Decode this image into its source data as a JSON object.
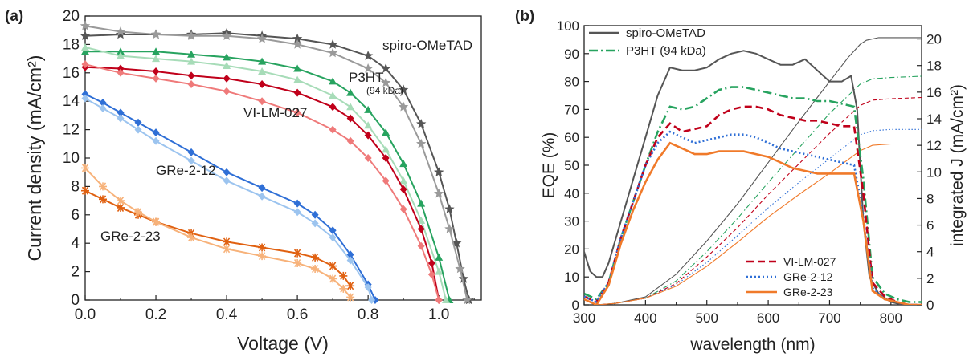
{
  "chart_data": [
    {
      "panel": "(a)",
      "type": "line",
      "xlabel": "Voltage (V)",
      "ylabel": "Current density (mA/cm²)",
      "xlim": [
        0,
        1.12
      ],
      "ylim": [
        0,
        20
      ],
      "xticks": [
        "0.0",
        "0.2",
        "0.4",
        "0.6",
        "0.8",
        "1.0"
      ],
      "xtick_values": [
        0,
        0.2,
        0.4,
        0.6,
        0.8,
        1.0
      ],
      "yticks": [
        "0",
        "2",
        "4",
        "6",
        "8",
        "10",
        "12",
        "14",
        "16",
        "18",
        "20"
      ],
      "ytick_values": [
        0,
        2,
        4,
        6,
        8,
        10,
        12,
        14,
        16,
        18,
        20
      ],
      "annotations": [
        {
          "text": "spiro-OMeTAD",
          "color": "#555555"
        },
        {
          "text": "P3HT",
          "color": "#27a35f"
        },
        {
          "text": "(94 kDa)",
          "color": "#27a35f"
        },
        {
          "text": "VI-LM-027",
          "color": "#c0001a"
        },
        {
          "text": "GRe-2-12",
          "color": "#2f6fd6"
        },
        {
          "text": "GRe-2-23",
          "color": "#f07a2a"
        }
      ],
      "series": [
        {
          "key": "spiro_fwd",
          "color": "#555555",
          "marker": "star",
          "x": [
            0,
            0.1,
            0.2,
            0.3,
            0.4,
            0.5,
            0.6,
            0.7,
            0.8,
            0.85,
            0.9,
            0.95,
            1.0,
            1.03,
            1.05,
            1.07,
            1.085
          ],
          "y": [
            18.6,
            18.7,
            18.7,
            18.7,
            18.8,
            18.6,
            18.4,
            18.0,
            17.2,
            16.3,
            14.8,
            12.4,
            9.0,
            6.4,
            4.0,
            1.5,
            0
          ]
        },
        {
          "key": "spiro_rev",
          "color": "#9a9a9a",
          "marker": "star",
          "x": [
            0,
            0.1,
            0.2,
            0.3,
            0.4,
            0.5,
            0.6,
            0.7,
            0.8,
            0.85,
            0.9,
            0.95,
            1.0,
            1.03,
            1.06,
            1.08
          ],
          "y": [
            19.3,
            18.9,
            18.7,
            18.6,
            18.6,
            18.4,
            18.0,
            17.4,
            16.3,
            15.3,
            13.6,
            11.0,
            7.5,
            5.0,
            2.2,
            0
          ]
        },
        {
          "key": "p3ht_fwd",
          "color": "#27a35f",
          "marker": "triangle",
          "x": [
            0,
            0.1,
            0.2,
            0.3,
            0.4,
            0.5,
            0.6,
            0.7,
            0.75,
            0.8,
            0.85,
            0.9,
            0.95,
            1.0,
            1.03
          ],
          "y": [
            17.5,
            17.5,
            17.5,
            17.3,
            17.1,
            16.8,
            16.3,
            15.4,
            14.6,
            13.4,
            11.8,
            9.6,
            6.8,
            3.0,
            0
          ]
        },
        {
          "key": "p3ht_rev",
          "color": "#a7dcb8",
          "marker": "triangle",
          "x": [
            0,
            0.1,
            0.2,
            0.3,
            0.4,
            0.5,
            0.6,
            0.7,
            0.75,
            0.8,
            0.85,
            0.9,
            0.95,
            1.0,
            1.02
          ],
          "y": [
            17.8,
            17.2,
            17.0,
            16.8,
            16.5,
            16.1,
            15.5,
            14.4,
            13.6,
            12.3,
            10.6,
            8.4,
            5.6,
            2.0,
            0
          ]
        },
        {
          "key": "vilm_fwd",
          "color": "#c0001a",
          "marker": "diamond",
          "x": [
            0,
            0.1,
            0.2,
            0.3,
            0.4,
            0.5,
            0.6,
            0.7,
            0.75,
            0.8,
            0.85,
            0.9,
            0.95,
            0.98,
            1.0
          ],
          "y": [
            16.4,
            16.3,
            16.1,
            15.8,
            15.6,
            15.2,
            14.6,
            13.6,
            12.8,
            11.6,
            10.0,
            7.8,
            5.0,
            2.6,
            0
          ]
        },
        {
          "key": "vilm_rev",
          "color": "#ef7a7a",
          "marker": "diamond",
          "x": [
            0,
            0.1,
            0.2,
            0.3,
            0.4,
            0.5,
            0.6,
            0.7,
            0.75,
            0.8,
            0.85,
            0.9,
            0.95,
            0.98,
            1.0
          ],
          "y": [
            16.6,
            16.0,
            15.6,
            15.2,
            14.7,
            14.0,
            13.2,
            12.0,
            11.2,
            10.0,
            8.4,
            6.4,
            3.8,
            1.8,
            0
          ]
        },
        {
          "key": "gre12_fwd",
          "color": "#2f6fd6",
          "marker": "diamond",
          "x": [
            0,
            0.05,
            0.1,
            0.15,
            0.2,
            0.3,
            0.4,
            0.5,
            0.6,
            0.65,
            0.7,
            0.75,
            0.8,
            0.82
          ],
          "y": [
            14.5,
            13.9,
            13.2,
            12.5,
            11.8,
            10.4,
            9.0,
            7.9,
            6.8,
            6.0,
            4.9,
            3.2,
            1.1,
            0
          ]
        },
        {
          "key": "gre12_rev",
          "color": "#9cc4ef",
          "marker": "diamond",
          "x": [
            0,
            0.05,
            0.1,
            0.15,
            0.2,
            0.3,
            0.4,
            0.5,
            0.6,
            0.65,
            0.7,
            0.75,
            0.8,
            0.81
          ],
          "y": [
            14.2,
            13.5,
            12.8,
            12.0,
            11.2,
            9.8,
            8.4,
            7.3,
            6.2,
            5.4,
            4.4,
            2.8,
            0.9,
            0
          ]
        },
        {
          "key": "gre23_fwd",
          "color": "#e06010",
          "marker": "asterisk",
          "x": [
            0,
            0.05,
            0.1,
            0.15,
            0.2,
            0.3,
            0.4,
            0.5,
            0.6,
            0.65,
            0.7,
            0.73,
            0.75
          ],
          "y": [
            7.7,
            7.1,
            6.5,
            6.0,
            5.5,
            4.7,
            4.1,
            3.7,
            3.3,
            3.0,
            2.4,
            1.7,
            1.0
          ]
        },
        {
          "key": "gre23_rev",
          "color": "#f7b27a",
          "marker": "asterisk",
          "x": [
            0,
            0.05,
            0.1,
            0.15,
            0.2,
            0.3,
            0.4,
            0.5,
            0.6,
            0.65,
            0.7,
            0.73,
            0.75
          ],
          "y": [
            9.3,
            8.0,
            7.0,
            6.2,
            5.5,
            4.4,
            3.6,
            3.1,
            2.6,
            2.2,
            1.5,
            0.8,
            0.2
          ]
        }
      ]
    },
    {
      "panel": "(b)",
      "type": "line",
      "xlabel": "wavelength (nm)",
      "ylabel": "EQE (%)",
      "y2label": "integrated J (mA/cm²)",
      "xlim": [
        300,
        850
      ],
      "ylim": [
        0,
        100
      ],
      "y2lim": [
        0,
        21
      ],
      "xticks": [
        "300",
        "400",
        "500",
        "600",
        "700",
        "800"
      ],
      "xtick_values": [
        300,
        400,
        500,
        600,
        700,
        800
      ],
      "yticks": [
        "0",
        "10",
        "20",
        "30",
        "40",
        "50",
        "60",
        "70",
        "80",
        "90",
        "100"
      ],
      "ytick_values": [
        0,
        10,
        20,
        30,
        40,
        50,
        60,
        70,
        80,
        90,
        100
      ],
      "y2ticks": [
        "0",
        "2",
        "4",
        "6",
        "8",
        "10",
        "12",
        "14",
        "16",
        "18",
        "20"
      ],
      "y2tick_values": [
        0,
        2,
        4,
        6,
        8,
        10,
        12,
        14,
        16,
        18,
        20
      ],
      "legend_placement": "top-left and bottom-center",
      "legend_top": [
        {
          "label": "spiro-OMeTAD",
          "color": "#555555",
          "dash": "solid"
        },
        {
          "label": "P3HT (94 kDa)",
          "color": "#27a35f",
          "dash": "dashdot"
        }
      ],
      "legend_bottom": [
        {
          "label": "VI-LM-027",
          "color": "#c0001a",
          "dash": "dash"
        },
        {
          "label": "GRe-2-12",
          "color": "#2f6fd6",
          "dash": "dot"
        },
        {
          "label": "GRe-2-23",
          "color": "#f07a2a",
          "dash": "solid"
        }
      ],
      "eqe_series": [
        {
          "key": "spiro_eqe",
          "color": "#555555",
          "dash": "solid",
          "x": [
            300,
            310,
            320,
            330,
            340,
            360,
            380,
            400,
            420,
            440,
            460,
            480,
            500,
            520,
            540,
            560,
            580,
            600,
            620,
            640,
            660,
            680,
            700,
            720,
            735,
            745,
            755,
            765,
            780,
            800,
            820,
            840,
            850
          ],
          "y": [
            19,
            12,
            10,
            10,
            15,
            30,
            45,
            60,
            75,
            85,
            84,
            84,
            85,
            88,
            90,
            91,
            90,
            88,
            86,
            86,
            88,
            84,
            80,
            80,
            82,
            70,
            30,
            10,
            4,
            1,
            0,
            0,
            0
          ]
        },
        {
          "key": "p3ht_eqe",
          "color": "#27a35f",
          "dash": "dashdot",
          "x": [
            300,
            320,
            340,
            360,
            380,
            400,
            420,
            440,
            460,
            480,
            500,
            520,
            540,
            560,
            580,
            600,
            620,
            640,
            660,
            680,
            700,
            720,
            740,
            755,
            770,
            790,
            810,
            830,
            850
          ],
          "y": [
            4,
            2,
            8,
            24,
            37,
            50,
            62,
            71,
            70,
            71,
            74,
            77,
            78,
            78,
            77,
            76,
            75,
            74,
            74,
            73,
            73,
            72,
            71,
            45,
            10,
            4,
            2,
            1,
            1
          ]
        },
        {
          "key": "vilm_eqe",
          "color": "#c0001a",
          "dash": "dash",
          "x": [
            300,
            320,
            340,
            360,
            380,
            400,
            420,
            440,
            460,
            480,
            500,
            520,
            540,
            560,
            580,
            600,
            620,
            640,
            660,
            680,
            700,
            720,
            740,
            755,
            770,
            790,
            810,
            830,
            850
          ],
          "y": [
            3,
            1,
            8,
            24,
            37,
            50,
            60,
            65,
            62,
            63,
            64,
            68,
            70,
            71,
            71,
            70,
            68,
            67,
            66,
            66,
            65,
            64,
            64,
            40,
            8,
            3,
            1,
            0,
            0
          ]
        },
        {
          "key": "gre12_eqe",
          "color": "#2f6fd6",
          "dash": "dot",
          "x": [
            300,
            320,
            340,
            360,
            380,
            400,
            420,
            440,
            460,
            480,
            500,
            520,
            540,
            560,
            580,
            600,
            620,
            640,
            660,
            680,
            700,
            720,
            740,
            755,
            770,
            790,
            810,
            830,
            850
          ],
          "y": [
            3,
            1,
            8,
            24,
            37,
            50,
            58,
            62,
            60,
            58,
            59,
            60,
            61,
            61,
            60,
            58,
            56,
            55,
            54,
            53,
            52,
            51,
            50,
            32,
            6,
            2,
            1,
            0,
            0
          ]
        },
        {
          "key": "gre23_eqe",
          "color": "#f07a2a",
          "dash": "solid",
          "x": [
            300,
            320,
            340,
            360,
            380,
            400,
            420,
            440,
            460,
            480,
            500,
            520,
            540,
            560,
            580,
            600,
            620,
            640,
            660,
            680,
            700,
            720,
            740,
            755,
            770,
            790,
            810,
            830,
            850
          ],
          "y": [
            2,
            0,
            7,
            22,
            34,
            44,
            52,
            58,
            56,
            54,
            54,
            55,
            55,
            55,
            54,
            53,
            51,
            49,
            48,
            47,
            47,
            47,
            47,
            30,
            5,
            2,
            1,
            0,
            0
          ]
        }
      ],
      "integrated_series": [
        {
          "key": "spiro_int",
          "color": "#555555",
          "dash": "solid",
          "x": [
            320,
            350,
            400,
            450,
            500,
            550,
            600,
            650,
            700,
            730,
            750,
            760,
            780,
            800,
            850
          ],
          "y": [
            0,
            0.1,
            0.6,
            2.3,
            4.8,
            7.6,
            10.7,
            13.8,
            16.8,
            18.6,
            19.6,
            19.9,
            20.1,
            20.1,
            20.1
          ]
        },
        {
          "key": "p3ht_int",
          "color": "#27a35f",
          "dash": "dashdot",
          "x": [
            320,
            350,
            400,
            450,
            500,
            550,
            600,
            650,
            700,
            750,
            770,
            800,
            850
          ],
          "y": [
            0,
            0.1,
            0.5,
            1.8,
            4.0,
            6.5,
            9.2,
            11.8,
            14.4,
            16.6,
            17.0,
            17.1,
            17.2
          ]
        },
        {
          "key": "vilm_int",
          "color": "#c0001a",
          "dash": "dash",
          "x": [
            320,
            350,
            400,
            450,
            500,
            550,
            600,
            650,
            700,
            750,
            770,
            800,
            850
          ],
          "y": [
            0,
            0.1,
            0.5,
            1.6,
            3.6,
            5.8,
            8.3,
            10.6,
            12.9,
            15.0,
            15.4,
            15.5,
            15.6
          ]
        },
        {
          "key": "gre12_int",
          "color": "#2f6fd6",
          "dash": "dot",
          "x": [
            320,
            350,
            400,
            450,
            500,
            550,
            600,
            650,
            700,
            750,
            770,
            800,
            850
          ],
          "y": [
            0,
            0.1,
            0.5,
            1.5,
            3.2,
            5.2,
            7.3,
            9.2,
            11.0,
            12.8,
            13.1,
            13.2,
            13.2
          ]
        },
        {
          "key": "gre23_int",
          "color": "#f07a2a",
          "dash": "solid",
          "x": [
            320,
            350,
            400,
            450,
            500,
            550,
            600,
            650,
            700,
            750,
            770,
            800,
            850
          ],
          "y": [
            0,
            0.1,
            0.5,
            1.4,
            2.9,
            4.7,
            6.6,
            8.3,
            9.9,
            11.6,
            12.0,
            12.1,
            12.1
          ]
        }
      ]
    }
  ]
}
